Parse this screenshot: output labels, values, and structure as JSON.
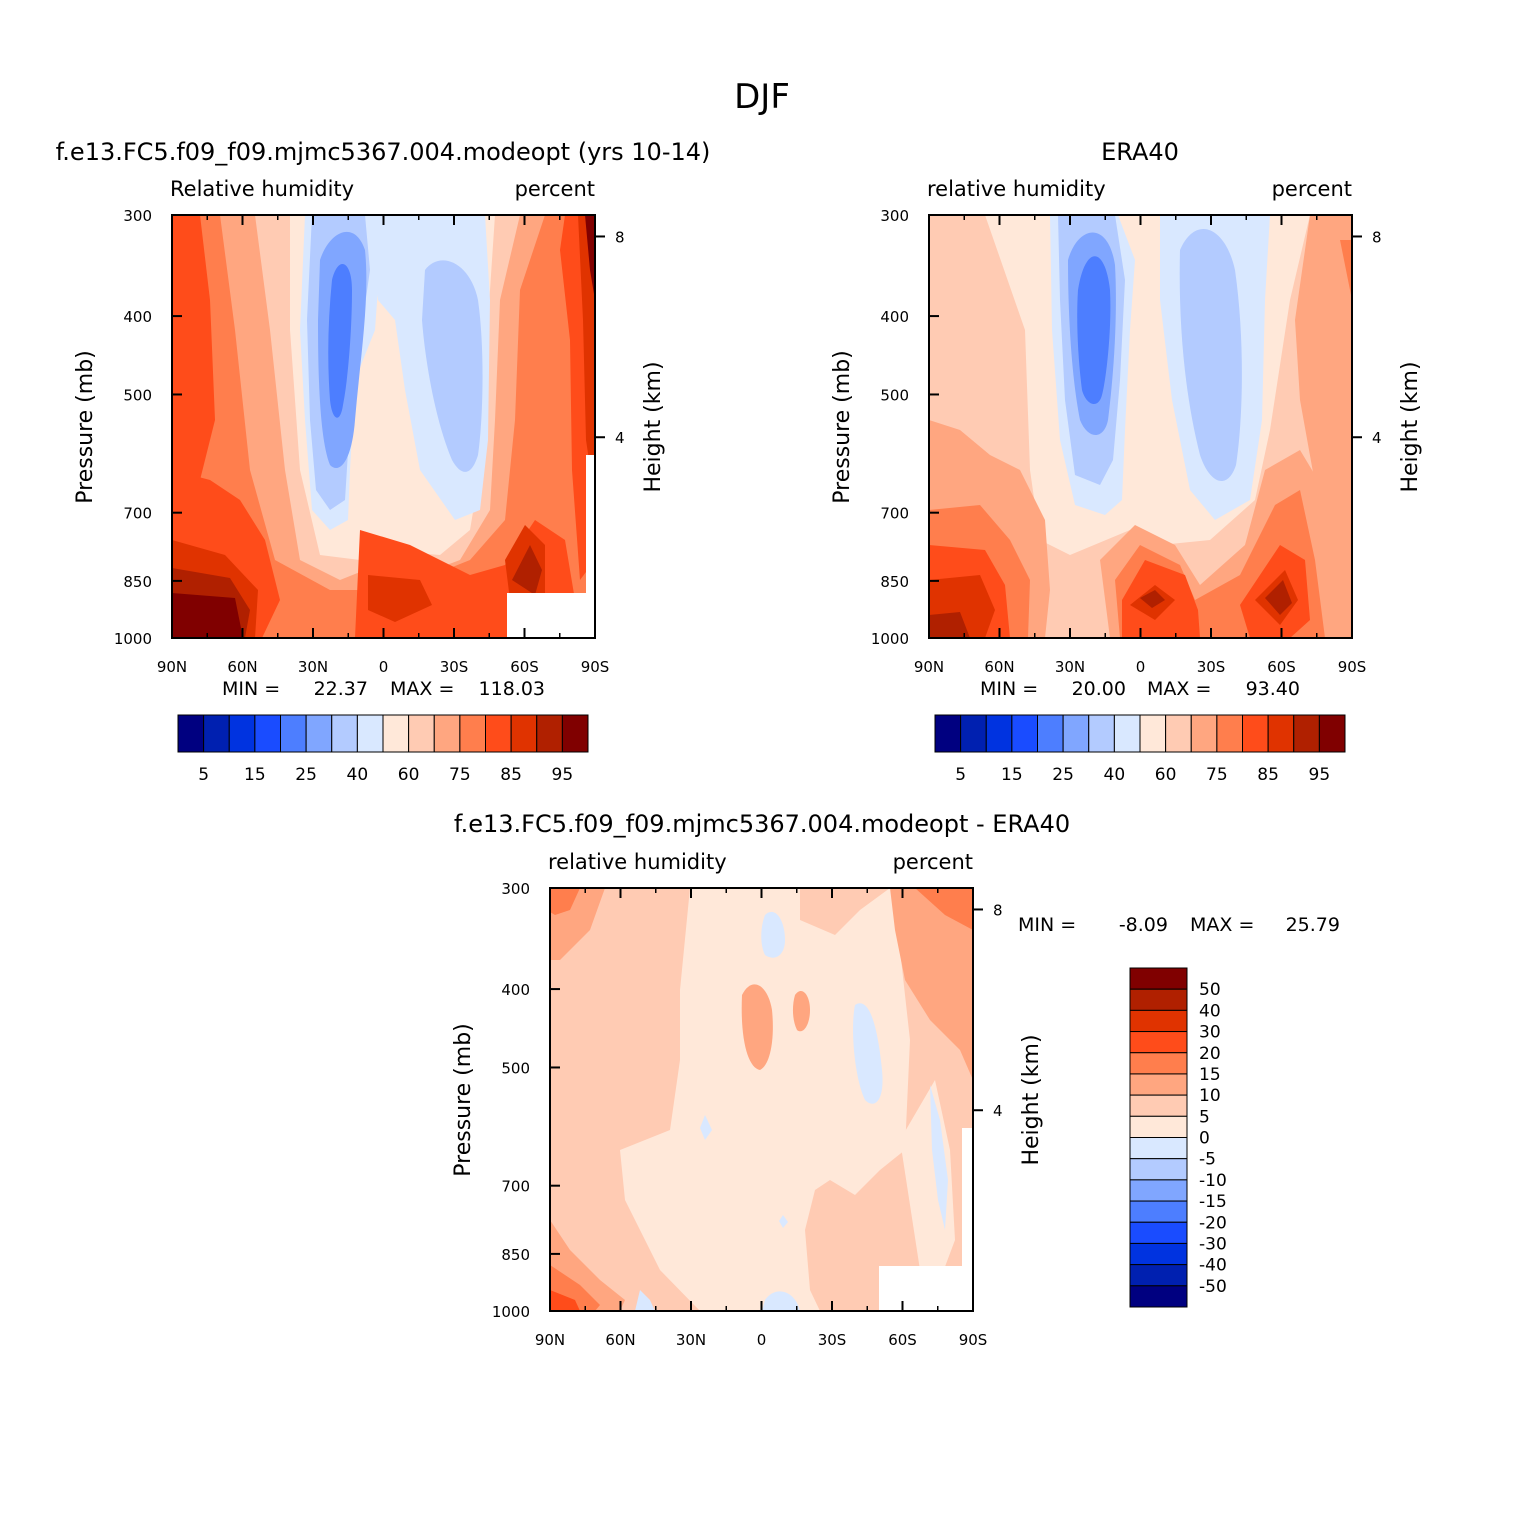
{
  "figure": {
    "title": "DJF"
  },
  "colors": {
    "relhum": [
      "#000080",
      "#0020b0",
      "#0033e0",
      "#1a4cff",
      "#4d7eff",
      "#80a6ff",
      "#b3cbff",
      "#d9e8ff",
      "#ffe8d9",
      "#ffcbb3",
      "#ffa680",
      "#ff7e4d",
      "#ff4c1a",
      "#e03300",
      "#b02000",
      "#800000"
    ],
    "diff": [
      "#800000",
      "#b02000",
      "#e03300",
      "#ff4c1a",
      "#ff7e4d",
      "#ffa680",
      "#ffcbb3",
      "#ffe8d9",
      "#d9e8ff",
      "#b3cbff",
      "#80a6ff",
      "#4d7eff",
      "#1a4cff",
      "#0033e0",
      "#0020b0",
      "#000080"
    ]
  },
  "chart_data": [
    {
      "type": "heatmap",
      "id": "model",
      "title": "f.e13.FC5.f09_f09.mjmc5367.004.modeopt (yrs 10-14)",
      "left_string": "Relative humidity",
      "right_string": "percent",
      "ylabel": "Pressure (mb)",
      "ylabel_right": "Height (km)",
      "x_ticks": [
        "90N",
        "60N",
        "30N",
        "0",
        "30S",
        "60S",
        "90S"
      ],
      "y_ticks": [
        "300",
        "400",
        "500",
        "700",
        "850",
        "1000"
      ],
      "y_right_ticks": [
        "8",
        "4"
      ],
      "min_label": "MIN =",
      "min_value": "22.37",
      "max_label": "MAX =",
      "max_value": "118.03",
      "colorbar_labels": [
        "5",
        "15",
        "25",
        "40",
        "60",
        "75",
        "85",
        "95"
      ]
    },
    {
      "type": "heatmap",
      "id": "obs",
      "title": "ERA40",
      "left_string": "relative humidity",
      "right_string": "percent",
      "ylabel": "Pressure (mb)",
      "ylabel_right": "Height (km)",
      "x_ticks": [
        "90N",
        "60N",
        "30N",
        "0",
        "30S",
        "60S",
        "90S"
      ],
      "y_ticks": [
        "300",
        "400",
        "500",
        "700",
        "850",
        "1000"
      ],
      "y_right_ticks": [
        "8",
        "4"
      ],
      "min_label": "MIN =",
      "min_value": "20.00",
      "max_label": "MAX =",
      "max_value": "93.40",
      "colorbar_labels": [
        "5",
        "15",
        "25",
        "40",
        "60",
        "75",
        "85",
        "95"
      ]
    },
    {
      "type": "heatmap",
      "id": "diff",
      "title": "f.e13.FC5.f09_f09.mjmc5367.004.modeopt - ERA40",
      "left_string": "relative humidity",
      "right_string": "percent",
      "ylabel": "Pressure (mb)",
      "ylabel_right": "Height (km)",
      "x_ticks": [
        "90N",
        "60N",
        "30N",
        "0",
        "30S",
        "60S",
        "90S"
      ],
      "y_ticks": [
        "300",
        "400",
        "500",
        "700",
        "850",
        "1000"
      ],
      "y_right_ticks": [
        "8",
        "4"
      ],
      "min_label": "MIN =",
      "min_value": "-8.09",
      "max_label": "MAX =",
      "max_value": "25.79",
      "colorbar_labels": [
        "50",
        "40",
        "30",
        "20",
        "15",
        "10",
        "5",
        "0",
        "-5",
        "-10",
        "-15",
        "-20",
        "-30",
        "-40",
        "-50"
      ]
    }
  ]
}
